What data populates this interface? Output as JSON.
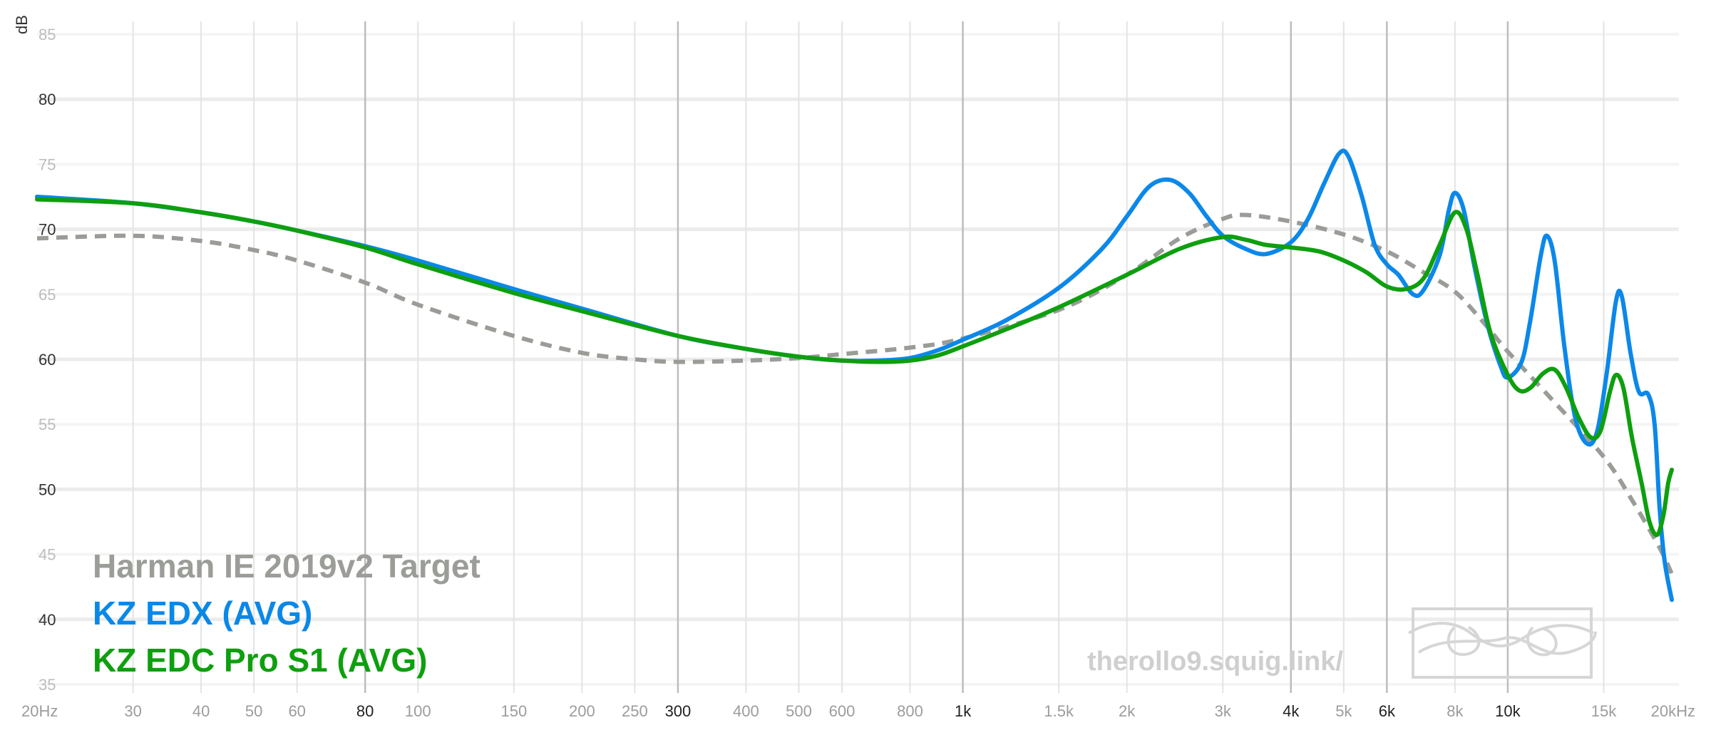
{
  "chart_data": {
    "type": "line",
    "xscale": "log",
    "xlim": [
      20,
      20000
    ],
    "ylim": [
      33,
      87
    ],
    "ylabel": "dB",
    "yticks": [
      {
        "v": 85,
        "label": "85",
        "major": false
      },
      {
        "v": 80,
        "label": "80",
        "major": true
      },
      {
        "v": 75,
        "label": "75",
        "major": false
      },
      {
        "v": 70,
        "label": "70",
        "major": true
      },
      {
        "v": 65,
        "label": "65",
        "major": false
      },
      {
        "v": 60,
        "label": "60",
        "major": true
      },
      {
        "v": 55,
        "label": "55",
        "major": false
      },
      {
        "v": 50,
        "label": "50",
        "major": true
      },
      {
        "v": 45,
        "label": "45",
        "major": false
      },
      {
        "v": 40,
        "label": "40",
        "major": true
      },
      {
        "v": 35,
        "label": "35",
        "major": false
      }
    ],
    "xticks": [
      {
        "f": 20,
        "label": "20Hz",
        "major": false
      },
      {
        "f": 30,
        "label": "30",
        "major": false
      },
      {
        "f": 40,
        "label": "40",
        "major": false
      },
      {
        "f": 50,
        "label": "50",
        "major": false
      },
      {
        "f": 60,
        "label": "60",
        "major": false
      },
      {
        "f": 80,
        "label": "80",
        "major": true
      },
      {
        "f": 100,
        "label": "100",
        "major": false
      },
      {
        "f": 150,
        "label": "150",
        "major": false
      },
      {
        "f": 200,
        "label": "200",
        "major": false
      },
      {
        "f": 250,
        "label": "250",
        "major": false
      },
      {
        "f": 300,
        "label": "300",
        "major": true
      },
      {
        "f": 400,
        "label": "400",
        "major": false
      },
      {
        "f": 500,
        "label": "500",
        "major": false
      },
      {
        "f": 600,
        "label": "600",
        "major": false
      },
      {
        "f": 800,
        "label": "800",
        "major": false
      },
      {
        "f": 1000,
        "label": "1k",
        "major": true
      },
      {
        "f": 1500,
        "label": "1.5k",
        "major": false
      },
      {
        "f": 2000,
        "label": "2k",
        "major": false
      },
      {
        "f": 3000,
        "label": "3k",
        "major": false
      },
      {
        "f": 4000,
        "label": "4k",
        "major": true
      },
      {
        "f": 5000,
        "label": "5k",
        "major": false
      },
      {
        "f": 6000,
        "label": "6k",
        "major": true
      },
      {
        "f": 8000,
        "label": "8k",
        "major": false
      },
      {
        "f": 10000,
        "label": "10k",
        "major": true
      },
      {
        "f": 15000,
        "label": "15k",
        "major": false
      },
      {
        "f": 20000,
        "label": "20kHz",
        "major": false
      }
    ],
    "series": [
      {
        "name": "Harman IE 2019v2 Target",
        "color": "#9a9c98",
        "dashed": true,
        "points": [
          [
            20,
            69.3
          ],
          [
            30,
            69.5
          ],
          [
            40,
            69.1
          ],
          [
            50,
            68.4
          ],
          [
            60,
            67.6
          ],
          [
            80,
            65.9
          ],
          [
            100,
            64.2
          ],
          [
            150,
            61.8
          ],
          [
            200,
            60.5
          ],
          [
            250,
            60.0
          ],
          [
            300,
            59.8
          ],
          [
            400,
            59.9
          ],
          [
            500,
            60.1
          ],
          [
            600,
            60.4
          ],
          [
            800,
            60.9
          ],
          [
            1000,
            61.6
          ],
          [
            1500,
            63.8
          ],
          [
            2000,
            66.5
          ],
          [
            2500,
            69.3
          ],
          [
            3000,
            70.8
          ],
          [
            3300,
            71.1
          ],
          [
            4000,
            70.6
          ],
          [
            5000,
            69.6
          ],
          [
            6000,
            68.3
          ],
          [
            7000,
            66.7
          ],
          [
            8000,
            65.2
          ],
          [
            9000,
            62.9
          ],
          [
            10000,
            60.6
          ],
          [
            12000,
            57.0
          ],
          [
            15000,
            52.5
          ],
          [
            17000,
            49.0
          ],
          [
            19000,
            45.5
          ],
          [
            20000,
            43.5
          ]
        ]
      },
      {
        "name": "KZ EDX (AVG)",
        "color": "#0b88e9",
        "dashed": false,
        "points": [
          [
            20,
            72.5
          ],
          [
            30,
            72.0
          ],
          [
            40,
            71.3
          ],
          [
            50,
            70.6
          ],
          [
            60,
            69.9
          ],
          [
            80,
            68.7
          ],
          [
            100,
            67.6
          ],
          [
            150,
            65.4
          ],
          [
            200,
            63.9
          ],
          [
            300,
            61.8
          ],
          [
            400,
            60.8
          ],
          [
            500,
            60.2
          ],
          [
            600,
            59.9
          ],
          [
            700,
            59.9
          ],
          [
            800,
            60.1
          ],
          [
            900,
            60.7
          ],
          [
            1000,
            61.5
          ],
          [
            1200,
            63.0
          ],
          [
            1500,
            65.5
          ],
          [
            1800,
            68.5
          ],
          [
            2000,
            71.0
          ],
          [
            2200,
            73.3
          ],
          [
            2400,
            73.8
          ],
          [
            2600,
            72.8
          ],
          [
            2800,
            71.0
          ],
          [
            3000,
            69.5
          ],
          [
            3300,
            68.5
          ],
          [
            3600,
            68.1
          ],
          [
            4000,
            69.0
          ],
          [
            4300,
            70.8
          ],
          [
            4600,
            73.5
          ],
          [
            4900,
            75.8
          ],
          [
            5100,
            75.6
          ],
          [
            5400,
            72.5
          ],
          [
            5700,
            68.8
          ],
          [
            6000,
            67.3
          ],
          [
            6300,
            66.5
          ],
          [
            6700,
            65.0
          ],
          [
            7000,
            65.3
          ],
          [
            7500,
            68.0
          ],
          [
            7800,
            71.5
          ],
          [
            8000,
            72.8
          ],
          [
            8300,
            71.5
          ],
          [
            8700,
            67.0
          ],
          [
            9200,
            62.5
          ],
          [
            9700,
            59.5
          ],
          [
            10000,
            58.6
          ],
          [
            10600,
            59.8
          ],
          [
            11000,
            63.0
          ],
          [
            11500,
            68.0
          ],
          [
            11800,
            69.5
          ],
          [
            12200,
            67.5
          ],
          [
            12700,
            61.0
          ],
          [
            13300,
            55.5
          ],
          [
            14000,
            53.5
          ],
          [
            14600,
            54.5
          ],
          [
            15200,
            59.0
          ],
          [
            15800,
            64.5
          ],
          [
            16200,
            64.8
          ],
          [
            16800,
            60.5
          ],
          [
            17400,
            57.5
          ],
          [
            18100,
            57.3
          ],
          [
            18600,
            55.0
          ],
          [
            19000,
            48.5
          ],
          [
            19400,
            44.5
          ],
          [
            20000,
            41.5
          ]
        ]
      },
      {
        "name": "KZ EDC Pro S1 (AVG)",
        "color": "#0e9f0e",
        "dashed": false,
        "points": [
          [
            20,
            72.3
          ],
          [
            30,
            72.0
          ],
          [
            40,
            71.3
          ],
          [
            50,
            70.6
          ],
          [
            60,
            69.9
          ],
          [
            80,
            68.6
          ],
          [
            100,
            67.3
          ],
          [
            150,
            65.1
          ],
          [
            200,
            63.7
          ],
          [
            300,
            61.8
          ],
          [
            400,
            60.8
          ],
          [
            500,
            60.2
          ],
          [
            600,
            59.9
          ],
          [
            700,
            59.8
          ],
          [
            800,
            59.9
          ],
          [
            900,
            60.3
          ],
          [
            1000,
            61.0
          ],
          [
            1200,
            62.3
          ],
          [
            1500,
            64.0
          ],
          [
            2000,
            66.5
          ],
          [
            2500,
            68.5
          ],
          [
            3000,
            69.4
          ],
          [
            3300,
            69.2
          ],
          [
            3600,
            68.8
          ],
          [
            4000,
            68.6
          ],
          [
            4500,
            68.3
          ],
          [
            5000,
            67.6
          ],
          [
            5500,
            66.7
          ],
          [
            6000,
            65.6
          ],
          [
            6500,
            65.4
          ],
          [
            7000,
            66.2
          ],
          [
            7500,
            68.8
          ],
          [
            8000,
            71.3
          ],
          [
            8400,
            70.0
          ],
          [
            8800,
            66.5
          ],
          [
            9300,
            62.0
          ],
          [
            10000,
            58.8
          ],
          [
            10500,
            57.6
          ],
          [
            11000,
            57.8
          ],
          [
            11600,
            58.9
          ],
          [
            12200,
            59.2
          ],
          [
            12800,
            57.8
          ],
          [
            13500,
            55.5
          ],
          [
            14200,
            54.0
          ],
          [
            14800,
            54.5
          ],
          [
            15400,
            57.5
          ],
          [
            15800,
            58.8
          ],
          [
            16300,
            57.8
          ],
          [
            16900,
            54.0
          ],
          [
            17600,
            50.5
          ],
          [
            18200,
            47.5
          ],
          [
            18800,
            46.5
          ],
          [
            19300,
            48.0
          ],
          [
            19700,
            50.5
          ],
          [
            20000,
            51.5
          ]
        ]
      }
    ],
    "legend": [
      {
        "label": "Harman IE 2019v2 Target",
        "color": "#9b9d98"
      },
      {
        "label": "KZ EDX (AVG)",
        "color": "#0a88e8"
      },
      {
        "label": "KZ EDC Pro S1 (AVG)",
        "color": "#0e9f0e"
      }
    ],
    "legend_position": "bottom-left",
    "watermark": "therollo9.squig.link/",
    "grid": true
  }
}
